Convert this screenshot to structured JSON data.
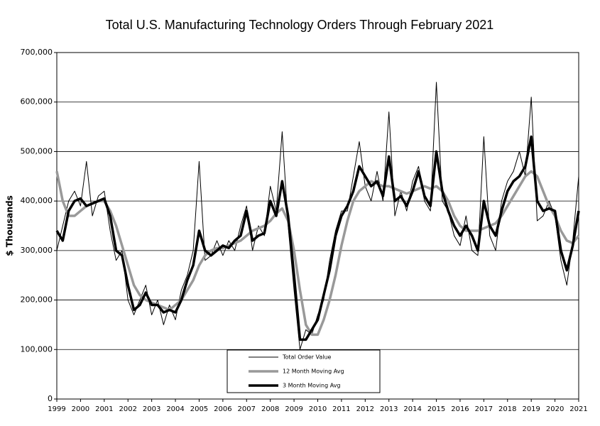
{
  "chart_data": {
    "type": "line",
    "title": "Total U.S. Manufacturing Technology Orders Through February 2021",
    "y_label": "$ Thousands",
    "x": [
      1999,
      1999.25,
      1999.5,
      1999.75,
      2000,
      2000.25,
      2000.5,
      2000.75,
      2001,
      2001.25,
      2001.5,
      2001.75,
      2002,
      2002.25,
      2002.5,
      2002.75,
      2003,
      2003.25,
      2003.5,
      2003.75,
      2004,
      2004.25,
      2004.5,
      2004.75,
      2005,
      2005.25,
      2005.5,
      2005.75,
      2006,
      2006.25,
      2006.5,
      2006.75,
      2007,
      2007.25,
      2007.5,
      2007.75,
      2008,
      2008.25,
      2008.5,
      2008.75,
      2009,
      2009.25,
      2009.5,
      2009.75,
      2010,
      2010.25,
      2010.5,
      2010.75,
      2011,
      2011.25,
      2011.5,
      2011.75,
      2012,
      2012.25,
      2012.5,
      2012.75,
      2013,
      2013.25,
      2013.5,
      2013.75,
      2014,
      2014.25,
      2014.5,
      2014.75,
      2015,
      2015.25,
      2015.5,
      2015.75,
      2016,
      2016.25,
      2016.5,
      2016.75,
      2017,
      2017.25,
      2017.5,
      2017.75,
      2018,
      2018.25,
      2018.5,
      2018.75,
      2019,
      2019.25,
      2019.5,
      2019.75,
      2020,
      2020.25,
      2020.5,
      2020.75,
      2021
    ],
    "series": [
      {
        "name": "Total Order Value",
        "color": "#000000",
        "width": 1,
        "values": [
          300000,
          350000,
          400000,
          420000,
          390000,
          480000,
          370000,
          410000,
          420000,
          340000,
          280000,
          300000,
          200000,
          170000,
          200000,
          230000,
          170000,
          200000,
          150000,
          190000,
          160000,
          220000,
          250000,
          300000,
          480000,
          280000,
          290000,
          320000,
          290000,
          320000,
          300000,
          350000,
          390000,
          300000,
          350000,
          330000,
          430000,
          380000,
          540000,
          350000,
          220000,
          100000,
          140000,
          130000,
          170000,
          200000,
          280000,
          340000,
          380000,
          380000,
          450000,
          520000,
          430000,
          400000,
          460000,
          400000,
          580000,
          370000,
          420000,
          380000,
          440000,
          470000,
          400000,
          380000,
          640000,
          400000,
          380000,
          330000,
          310000,
          370000,
          300000,
          290000,
          530000,
          330000,
          300000,
          400000,
          440000,
          460000,
          500000,
          450000,
          610000,
          360000,
          370000,
          400000,
          370000,
          280000,
          230000,
          320000,
          450000
        ]
      },
      {
        "name": "12 Month Moving Avg",
        "color": "#999999",
        "width": 3.5,
        "values": [
          460000,
          400000,
          370000,
          370000,
          380000,
          390000,
          395000,
          400000,
          400000,
          380000,
          350000,
          310000,
          270000,
          230000,
          210000,
          200000,
          195000,
          190000,
          185000,
          180000,
          190000,
          200000,
          220000,
          240000,
          270000,
          290000,
          300000,
          305000,
          305000,
          310000,
          315000,
          320000,
          330000,
          340000,
          345000,
          350000,
          360000,
          375000,
          385000,
          360000,
          300000,
          220000,
          150000,
          130000,
          130000,
          160000,
          200000,
          250000,
          310000,
          360000,
          400000,
          420000,
          430000,
          440000,
          435000,
          430000,
          430000,
          425000,
          420000,
          415000,
          420000,
          425000,
          430000,
          425000,
          430000,
          420000,
          400000,
          370000,
          350000,
          340000,
          340000,
          340000,
          345000,
          350000,
          355000,
          370000,
          390000,
          410000,
          430000,
          450000,
          460000,
          450000,
          420000,
          390000,
          370000,
          340000,
          320000,
          315000,
          330000
        ]
      },
      {
        "name": "3 Month Moving Avg",
        "color": "#000000",
        "width": 3.5,
        "values": [
          340000,
          320000,
          380000,
          400000,
          405000,
          390000,
          395000,
          400000,
          405000,
          370000,
          300000,
          290000,
          230000,
          180000,
          190000,
          215000,
          190000,
          190000,
          175000,
          180000,
          175000,
          200000,
          240000,
          270000,
          340000,
          300000,
          290000,
          300000,
          310000,
          305000,
          320000,
          330000,
          380000,
          320000,
          330000,
          335000,
          400000,
          370000,
          440000,
          370000,
          250000,
          120000,
          120000,
          140000,
          160000,
          210000,
          260000,
          330000,
          370000,
          390000,
          420000,
          470000,
          450000,
          430000,
          440000,
          410000,
          490000,
          400000,
          410000,
          390000,
          420000,
          460000,
          410000,
          390000,
          500000,
          420000,
          380000,
          350000,
          330000,
          350000,
          330000,
          300000,
          400000,
          350000,
          330000,
          380000,
          420000,
          440000,
          450000,
          470000,
          530000,
          400000,
          380000,
          385000,
          380000,
          300000,
          260000,
          310000,
          380000
        ]
      }
    ],
    "xlim": [
      1999,
      2021
    ],
    "xticks": [
      1999,
      2000,
      2001,
      2002,
      2003,
      2004,
      2005,
      2006,
      2007,
      2008,
      2009,
      2010,
      2011,
      2012,
      2013,
      2014,
      2015,
      2016,
      2017,
      2018,
      2019,
      2020,
      2021
    ],
    "ylim": [
      0,
      700000
    ],
    "yticks": [
      0,
      {
        "value": 100000,
        "label": "100,000"
      },
      {
        "value": 200000,
        "label": "200,000"
      },
      {
        "value": 300000,
        "label": "300,000"
      },
      {
        "value": 400000,
        "label": "400,000"
      },
      {
        "value": 500000,
        "label": "500,000"
      },
      {
        "value": 600000,
        "label": "600,000"
      },
      {
        "value": 700000,
        "label": "700,000"
      }
    ],
    "grid": true,
    "legend": "bottom-center"
  }
}
